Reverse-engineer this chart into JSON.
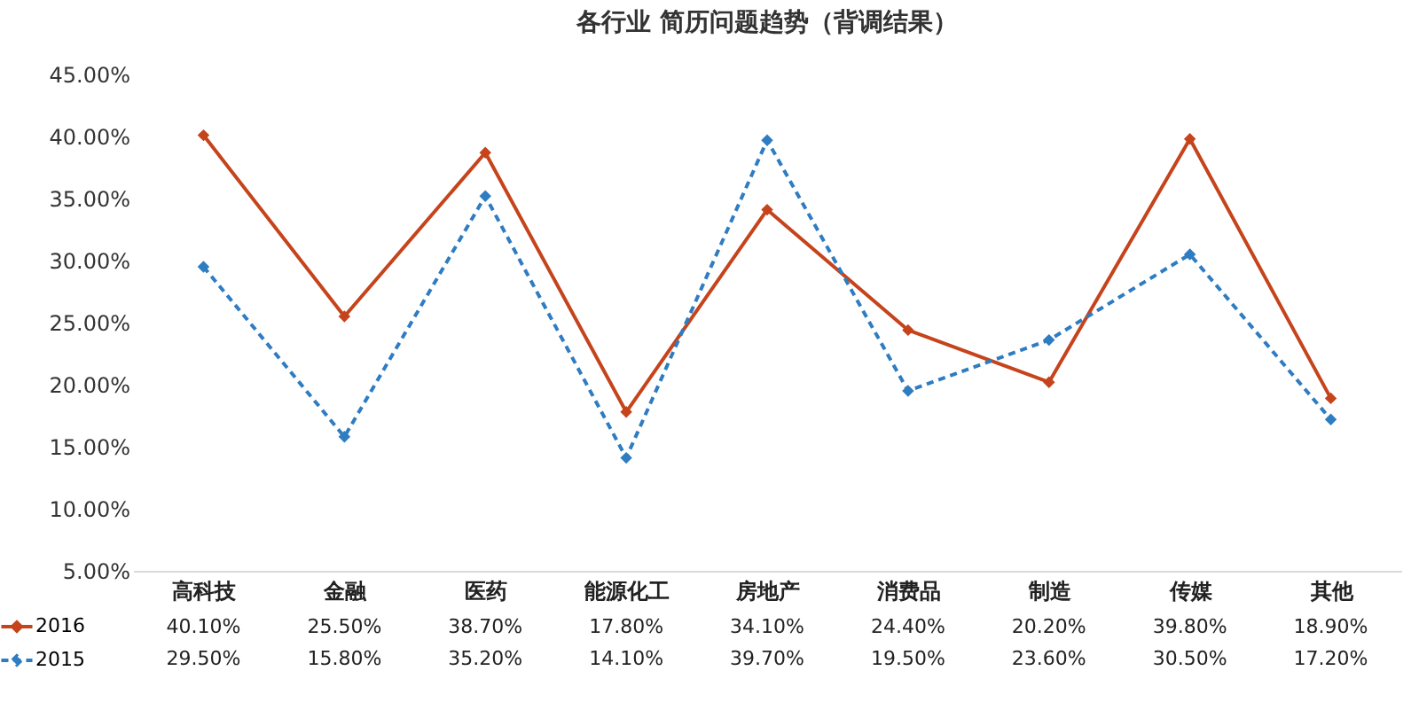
{
  "chart_data": {
    "type": "line",
    "title": "各行业 简历问题趋势（背调结果）",
    "categories": [
      "高科技",
      "金融",
      "医药",
      "能源化工",
      "房地产",
      "消费品",
      "制造",
      "传媒",
      "其他"
    ],
    "series": [
      {
        "name": "2016",
        "color": "#c5441c",
        "line_style": "solid",
        "values": [
          40.1,
          25.5,
          38.7,
          17.8,
          34.1,
          24.4,
          20.2,
          39.8,
          18.9
        ],
        "value_labels": [
          "40.10%",
          "25.50%",
          "38.70%",
          "17.80%",
          "34.10%",
          "24.40%",
          "20.20%",
          "39.80%",
          "18.90%"
        ]
      },
      {
        "name": "2015",
        "color": "#2e7cc1",
        "line_style": "dashed",
        "values": [
          29.5,
          15.8,
          35.2,
          14.1,
          39.7,
          19.5,
          23.6,
          30.5,
          17.2
        ],
        "value_labels": [
          "29.50%",
          "15.80%",
          "35.20%",
          "14.10%",
          "39.70%",
          "19.50%",
          "23.60%",
          "30.50%",
          "17.20%"
        ]
      }
    ],
    "ylim": [
      5,
      45
    ],
    "yticks": [
      {
        "value": 5,
        "label": "5.00%"
      },
      {
        "value": 10,
        "label": "10.00%"
      },
      {
        "value": 15,
        "label": "15.00%"
      },
      {
        "value": 20,
        "label": "20.00%"
      },
      {
        "value": 25,
        "label": "25.00%"
      },
      {
        "value": 30,
        "label": "30.00%"
      },
      {
        "value": 35,
        "label": "35.00%"
      },
      {
        "value": 40,
        "label": "40.00%"
      },
      {
        "value": 45,
        "label": "45.00%"
      }
    ],
    "marker": "diamond",
    "grid": false,
    "legend": "bottom left"
  }
}
